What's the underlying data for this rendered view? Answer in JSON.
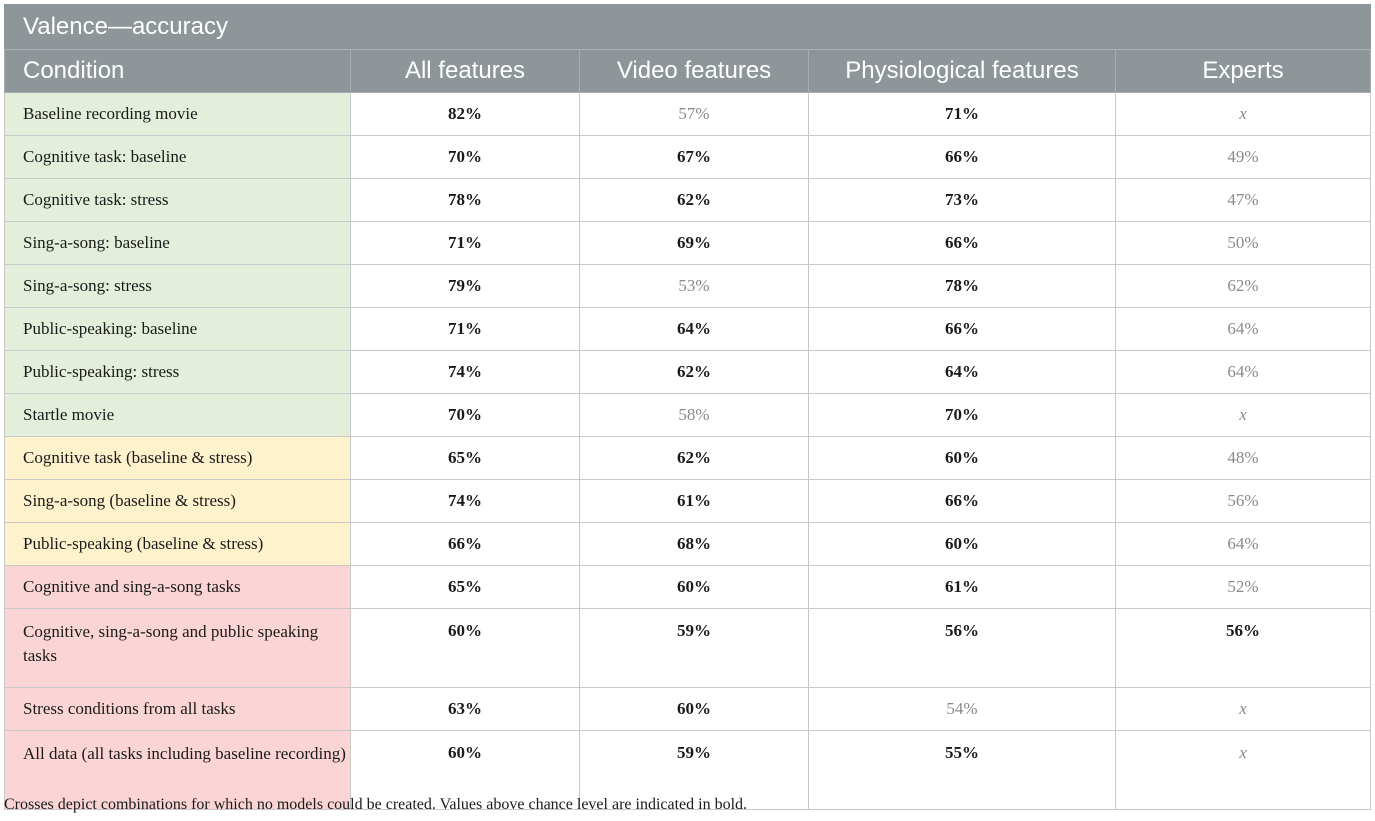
{
  "table": {
    "title": "Valence—accuracy",
    "columns": [
      "Condition",
      "All features",
      "Video features",
      "Physiological features",
      "Experts"
    ],
    "rows": [
      {
        "group": "green",
        "condition": "Baseline recording movie",
        "cells": [
          {
            "text": "82%",
            "bold": true
          },
          {
            "text": "57%",
            "bold": false
          },
          {
            "text": "71%",
            "bold": true
          },
          {
            "text": "x",
            "bold": false,
            "cross": true
          }
        ]
      },
      {
        "group": "green",
        "condition": "Cognitive task: baseline",
        "cells": [
          {
            "text": "70%",
            "bold": true
          },
          {
            "text": "67%",
            "bold": true
          },
          {
            "text": "66%",
            "bold": true
          },
          {
            "text": "49%",
            "bold": false
          }
        ]
      },
      {
        "group": "green",
        "condition": "Cognitive task: stress",
        "cells": [
          {
            "text": "78%",
            "bold": true
          },
          {
            "text": "62%",
            "bold": true
          },
          {
            "text": "73%",
            "bold": true
          },
          {
            "text": "47%",
            "bold": false
          }
        ]
      },
      {
        "group": "green",
        "condition": "Sing-a-song: baseline",
        "cells": [
          {
            "text": "71%",
            "bold": true
          },
          {
            "text": "69%",
            "bold": true
          },
          {
            "text": "66%",
            "bold": true
          },
          {
            "text": "50%",
            "bold": false
          }
        ]
      },
      {
        "group": "green",
        "condition": "Sing-a-song: stress",
        "cells": [
          {
            "text": "79%",
            "bold": true
          },
          {
            "text": "53%",
            "bold": false
          },
          {
            "text": "78%",
            "bold": true
          },
          {
            "text": "62%",
            "bold": false
          }
        ]
      },
      {
        "group": "green",
        "condition": "Public-speaking: baseline",
        "cells": [
          {
            "text": "71%",
            "bold": true
          },
          {
            "text": "64%",
            "bold": true
          },
          {
            "text": "66%",
            "bold": true
          },
          {
            "text": "64%",
            "bold": false
          }
        ]
      },
      {
        "group": "green",
        "condition": "Public-speaking: stress",
        "cells": [
          {
            "text": "74%",
            "bold": true
          },
          {
            "text": "62%",
            "bold": true
          },
          {
            "text": "64%",
            "bold": true
          },
          {
            "text": "64%",
            "bold": false
          }
        ]
      },
      {
        "group": "green",
        "condition": "Startle movie",
        "cells": [
          {
            "text": "70%",
            "bold": true
          },
          {
            "text": "58%",
            "bold": false
          },
          {
            "text": "70%",
            "bold": true
          },
          {
            "text": "x",
            "bold": false,
            "cross": true
          }
        ]
      },
      {
        "group": "yellow",
        "condition": "Cognitive task (baseline & stress)",
        "cells": [
          {
            "text": "65%",
            "bold": true
          },
          {
            "text": "62%",
            "bold": true
          },
          {
            "text": "60%",
            "bold": true
          },
          {
            "text": "48%",
            "bold": false
          }
        ]
      },
      {
        "group": "yellow",
        "condition": "Sing-a-song (baseline & stress)",
        "cells": [
          {
            "text": "74%",
            "bold": true
          },
          {
            "text": "61%",
            "bold": true
          },
          {
            "text": "66%",
            "bold": true
          },
          {
            "text": "56%",
            "bold": false
          }
        ]
      },
      {
        "group": "yellow",
        "condition": "Public-speaking (baseline & stress)",
        "cells": [
          {
            "text": "66%",
            "bold": true
          },
          {
            "text": "68%",
            "bold": true
          },
          {
            "text": "60%",
            "bold": true
          },
          {
            "text": "64%",
            "bold": false
          }
        ]
      },
      {
        "group": "red",
        "condition": "Cognitive and sing-a-song tasks",
        "cells": [
          {
            "text": "65%",
            "bold": true
          },
          {
            "text": "60%",
            "bold": true
          },
          {
            "text": "61%",
            "bold": true
          },
          {
            "text": "52%",
            "bold": false
          }
        ]
      },
      {
        "group": "red",
        "condition": "Cognitive, sing-a-song and public speaking tasks",
        "tall": true,
        "cells": [
          {
            "text": "60%",
            "bold": true
          },
          {
            "text": "59%",
            "bold": true
          },
          {
            "text": "56%",
            "bold": true
          },
          {
            "text": "56%",
            "bold": true
          }
        ]
      },
      {
        "group": "red",
        "condition": "Stress conditions from all tasks",
        "cells": [
          {
            "text": "63%",
            "bold": true
          },
          {
            "text": "60%",
            "bold": true
          },
          {
            "text": "54%",
            "bold": false
          },
          {
            "text": "x",
            "bold": false,
            "cross": true
          }
        ]
      },
      {
        "group": "red",
        "condition": "All data (all tasks including baseline recording)",
        "tall": true,
        "cells": [
          {
            "text": "60%",
            "bold": true
          },
          {
            "text": "59%",
            "bold": true
          },
          {
            "text": "55%",
            "bold": true
          },
          {
            "text": "x",
            "bold": false,
            "cross": true
          }
        ]
      }
    ],
    "group_colors": {
      "green": "#e3efda",
      "yellow": "#fef2cc",
      "red": "#fbd5d5",
      "header": "#8e969a"
    }
  },
  "footnote": "Crosses depict combinations for which no models could be created. Values above chance level are indicated in bold."
}
